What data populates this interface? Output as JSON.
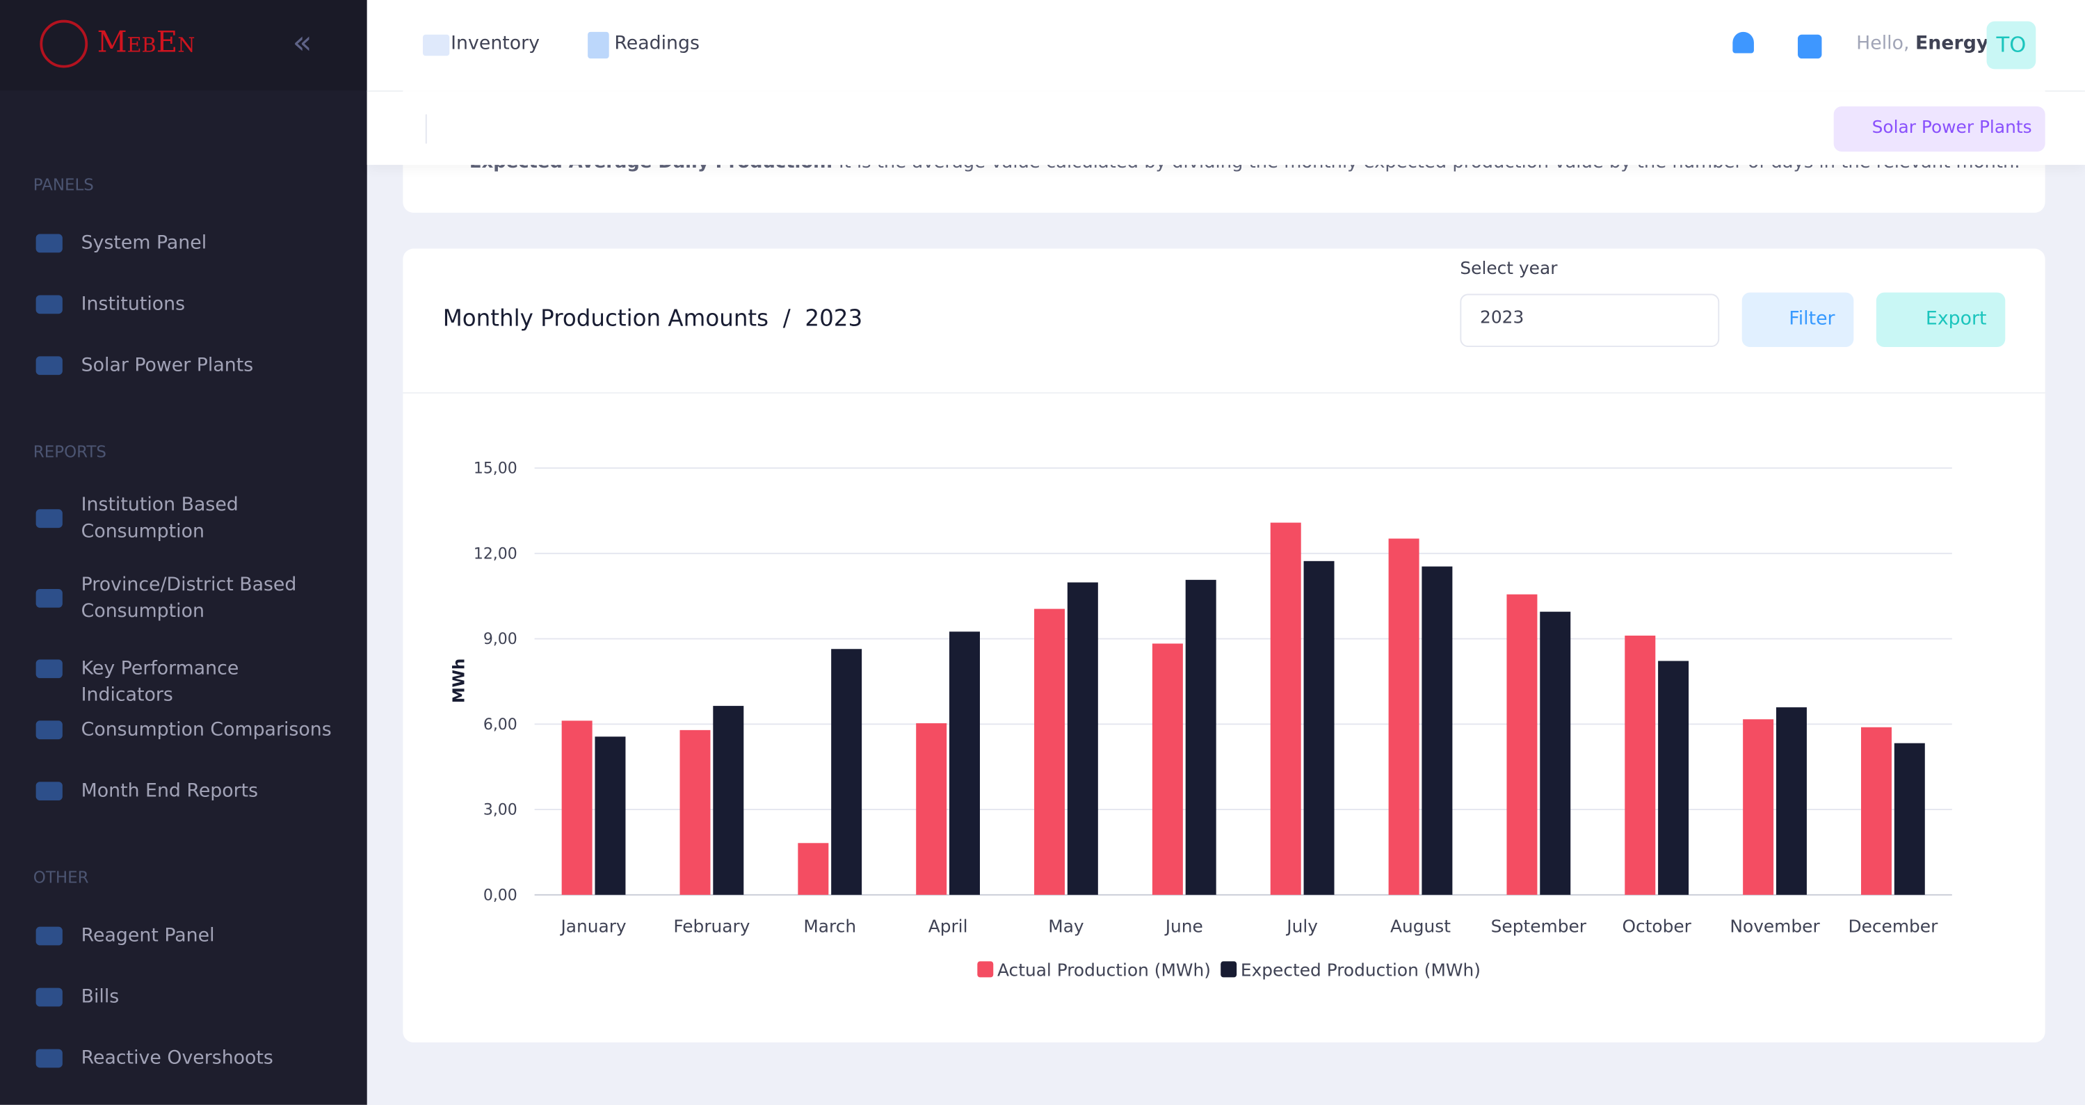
{
  "sidebar": {
    "brand": "MebEn",
    "sections": [
      {
        "title": "PANELS",
        "items": [
          "System Panel",
          "Institutions",
          "Solar Power Plants"
        ]
      },
      {
        "title": "REPORTS",
        "items": [
          "Institution Based Consumption",
          "Province/District Based Consumption",
          "Key Performance Indicators",
          "Consumption Comparisons",
          "Month End Reports"
        ]
      },
      {
        "title": "OTHER",
        "items": [
          "Reagent Panel",
          "Bills",
          "Reactive Overshoots"
        ]
      }
    ]
  },
  "topbar": {
    "tabs": [
      "Inventory",
      "Readings"
    ],
    "greeting": "Hello,",
    "user": "Energy",
    "avatar": "TO",
    "action": "Solar Power Plants"
  },
  "note": {
    "term": "Expected Average Daily Production:",
    "text": "It is the average value calculated by dividing the monthly expected production value by the number of days in the relevant month."
  },
  "card": {
    "title": "Monthly Production Amounts",
    "separator": "/",
    "year": "2023",
    "select_label": "Select year",
    "select_value": "2023",
    "filter": "Filter",
    "export": "Export"
  },
  "chart_data": {
    "type": "bar",
    "y_label": "MWh",
    "categories": [
      "January",
      "February",
      "March",
      "April",
      "May",
      "June",
      "July",
      "August",
      "September",
      "October",
      "November",
      "December"
    ],
    "series": [
      {
        "name": "Actual Production (MWh)",
        "color": "#f44d62",
        "values": [
          6.12,
          5.79,
          1.82,
          6.03,
          10.05,
          8.83,
          13.08,
          12.52,
          10.56,
          9.11,
          6.17,
          5.89
        ]
      },
      {
        "name": "Expected Production (MWh)",
        "color": "#181c32",
        "values": [
          5.56,
          6.64,
          8.64,
          9.25,
          10.98,
          11.07,
          11.73,
          11.54,
          9.95,
          8.22,
          6.59,
          5.33
        ]
      }
    ],
    "ylim": [
      0,
      15
    ],
    "yticks": [
      {
        "value": 0,
        "label": "0,00"
      },
      {
        "value": 3,
        "label": "3,00"
      },
      {
        "value": 6,
        "label": "6,00"
      },
      {
        "value": 9,
        "label": "9,00"
      },
      {
        "value": 12,
        "label": "12,00"
      },
      {
        "value": 15,
        "label": "15,00"
      }
    ],
    "grid": true,
    "legend": "bottom"
  }
}
